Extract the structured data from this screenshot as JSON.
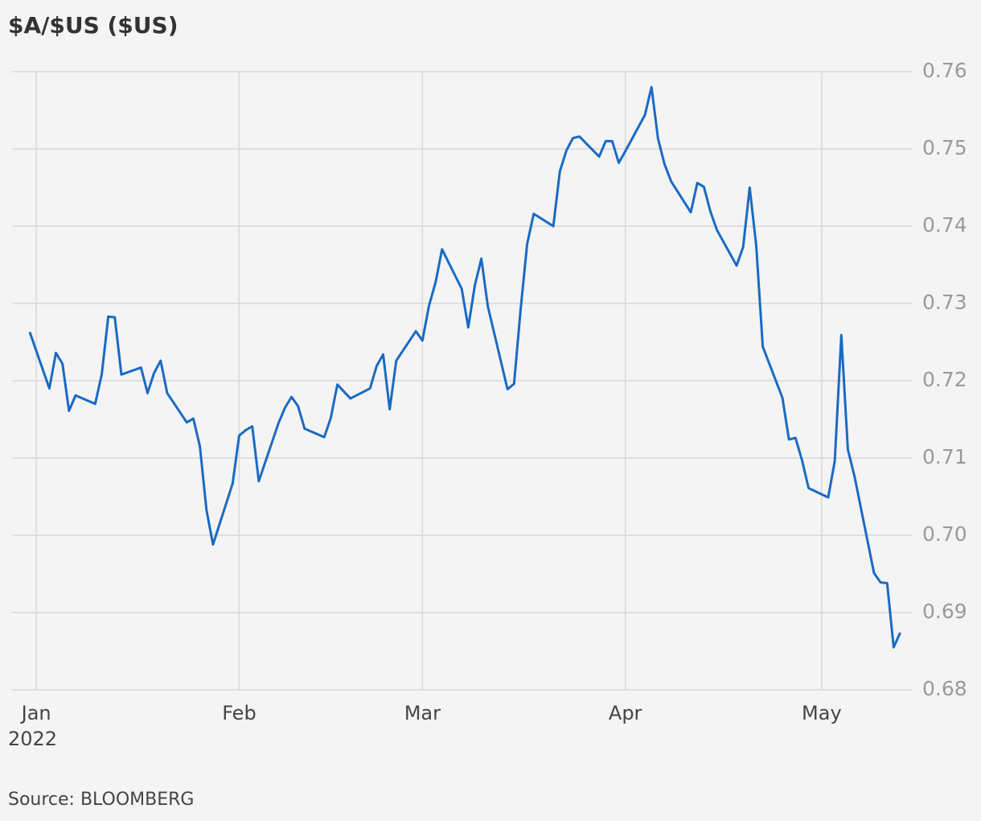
{
  "chart_data": {
    "type": "line",
    "title": "$A/$US ($US)",
    "source": "Source: BLOOMBERG",
    "x_year_label": "2022",
    "x": [
      -1,
      2,
      3,
      4,
      5,
      6,
      9,
      10,
      11,
      12,
      13,
      16,
      17,
      18,
      19,
      20,
      23,
      24,
      25,
      26,
      27,
      30,
      31,
      32,
      33,
      34,
      37,
      38,
      39,
      40,
      41,
      44,
      45,
      46,
      47,
      48,
      51,
      52,
      53,
      54,
      55,
      58,
      59,
      60,
      61,
      62,
      65,
      66,
      67,
      68,
      69,
      72,
      73,
      74,
      75,
      76,
      79,
      80,
      81,
      82,
      83,
      86,
      87,
      88,
      89,
      90,
      93,
      94,
      95,
      96,
      97,
      100,
      101,
      102,
      103,
      104,
      107,
      108,
      109,
      110,
      111,
      114,
      115,
      116,
      117,
      118,
      121,
      122,
      123,
      124,
      125,
      128,
      129,
      130,
      131,
      132
    ],
    "series": [
      {
        "name": "$A/$US",
        "color": "#1a6ac4",
        "values": [
          0.7263,
          0.719,
          0.7236,
          0.7222,
          0.7161,
          0.7181,
          0.717,
          0.7208,
          0.7283,
          0.7282,
          0.7208,
          0.7217,
          0.7184,
          0.721,
          0.7226,
          0.7184,
          0.7146,
          0.7151,
          0.7115,
          0.7033,
          0.6988,
          0.7067,
          0.7129,
          0.7136,
          0.7141,
          0.707,
          0.7145,
          0.7165,
          0.7179,
          0.7167,
          0.7138,
          0.7127,
          0.7152,
          0.7195,
          0.7186,
          0.7177,
          0.719,
          0.7219,
          0.7234,
          0.7163,
          0.7226,
          0.7264,
          0.7252,
          0.7297,
          0.7327,
          0.737,
          0.7319,
          0.7269,
          0.7323,
          0.7358,
          0.7296,
          0.7189,
          0.7196,
          0.7292,
          0.7377,
          0.7416,
          0.74,
          0.7471,
          0.7498,
          0.7514,
          0.7516,
          0.749,
          0.751,
          0.751,
          0.7482,
          0.7497,
          0.7544,
          0.758,
          0.7513,
          0.748,
          0.7458,
          0.7418,
          0.7456,
          0.7451,
          0.7419,
          0.7395,
          0.7349,
          0.7373,
          0.745,
          0.7375,
          0.7244,
          0.7178,
          0.7124,
          0.7126,
          0.7097,
          0.7061,
          0.7049,
          0.7096,
          0.7259,
          0.7111,
          0.7077,
          0.6951,
          0.6939,
          0.6938,
          0.6855,
          0.6874
        ]
      }
    ],
    "xlim": [
      -3.7,
      133.9
    ],
    "xticks": [
      {
        "value": 0,
        "label": "Jan"
      },
      {
        "value": 31,
        "label": "Feb"
      },
      {
        "value": 59,
        "label": "Mar"
      },
      {
        "value": 90,
        "label": "Apr"
      },
      {
        "value": 120,
        "label": "May"
      }
    ],
    "ylim": [
      0.68,
      0.76
    ],
    "yticks": [
      {
        "value": 0.68,
        "label": "0.68"
      },
      0.69,
      {
        "value": 0.7,
        "label": "0.70"
      },
      0.71,
      0.72,
      0.73,
      0.74,
      0.75,
      0.76
    ],
    "grid": true
  }
}
